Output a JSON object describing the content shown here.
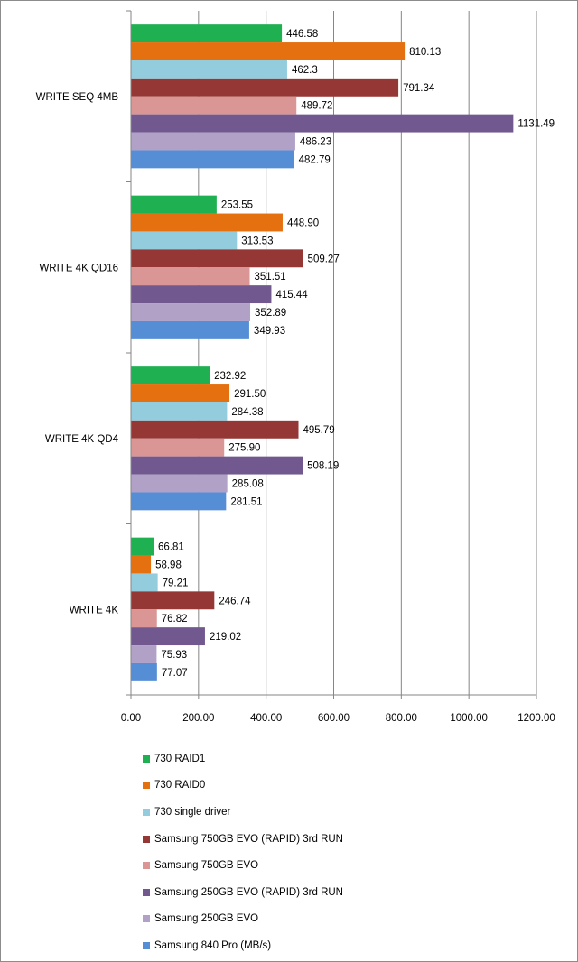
{
  "chart_data": {
    "type": "bar",
    "orientation": "horizontal",
    "categories": [
      "WRITE SEQ 4MB",
      "WRITE 4K QD16",
      "WRITE 4K QD4",
      "WRITE 4K"
    ],
    "series": [
      {
        "name": "730 RAID1",
        "color": "#1fb052",
        "values": [
          446.58,
          253.55,
          232.92,
          66.81
        ],
        "labels": [
          "446.58",
          "253.55",
          "232.92",
          "66.81"
        ]
      },
      {
        "name": "730 RAID0",
        "color": "#e5700f",
        "values": [
          810.13,
          448.9,
          291.5,
          58.98
        ],
        "labels": [
          "810.13",
          "448.90",
          "291.50",
          "58.98"
        ]
      },
      {
        "name": "730 single driver",
        "color": "#93cddd",
        "values": [
          462.3,
          313.53,
          284.38,
          79.21
        ],
        "labels": [
          "462.3",
          "313.53",
          "284.38",
          "79.21"
        ]
      },
      {
        "name": "Samsung 750GB EVO (RAPID) 3rd RUN",
        "color": "#953735",
        "values": [
          791.34,
          509.27,
          495.79,
          246.74
        ],
        "labels": [
          "791.34",
          "509.27",
          "495.79",
          "246.74"
        ]
      },
      {
        "name": "Samsung 750GB EVO",
        "color": "#d99694",
        "values": [
          489.72,
          351.51,
          275.9,
          76.82
        ],
        "labels": [
          "489.72",
          "351.51",
          "275.90",
          "76.82"
        ]
      },
      {
        "name": "Samsung 250GB EVO (RAPID) 3rd RUN",
        "color": "#71588f",
        "values": [
          1131.49,
          415.44,
          508.19,
          219.02
        ],
        "labels": [
          "1131.49",
          "415.44",
          "508.19",
          "219.02"
        ]
      },
      {
        "name": "Samsung 250GB EVO",
        "color": "#b2a1c7",
        "values": [
          486.23,
          352.89,
          285.08,
          75.93
        ],
        "labels": [
          "486.23",
          "352.89",
          "285.08",
          "75.93"
        ]
      },
      {
        "name": "Samsung 840 Pro (MB/s)",
        "color": "#558ed5",
        "values": [
          482.79,
          349.93,
          281.51,
          77.07
        ],
        "labels": [
          "482.79",
          "349.93",
          "281.51",
          "77.07"
        ]
      }
    ],
    "xlim": [
      0,
      1200
    ],
    "xticks": [
      0,
      200,
      400,
      600,
      800,
      1000,
      1200
    ],
    "xtick_labels": [
      "0.00",
      "200.00",
      "400.00",
      "600.00",
      "800.00",
      "1000.00",
      "1200.00"
    ],
    "grid": true,
    "legend_position": "bottom",
    "title": "",
    "xlabel": "",
    "ylabel": ""
  }
}
